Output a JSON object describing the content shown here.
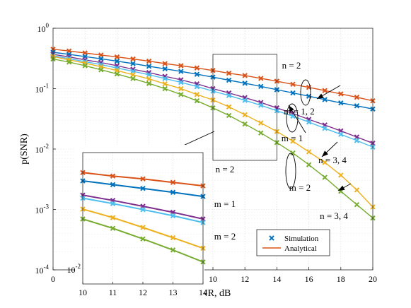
{
  "chart_data": {
    "type": "line",
    "xlabel": "SNR, dB",
    "ylabel": "p(SNR)",
    "xlim": [
      0,
      20
    ],
    "ylim": [
      0.0001,
      1
    ],
    "yscale": "log",
    "grid": true,
    "x_ticks": [
      "0",
      "2",
      "4",
      "6",
      "8",
      "10",
      "12",
      "14",
      "16",
      "18",
      "20"
    ],
    "y_ticks": [
      {
        "base": "10",
        "exp": "-4"
      },
      {
        "base": "10",
        "exp": "-3"
      },
      {
        "base": "10",
        "exp": "-2"
      },
      {
        "base": "10",
        "exp": "-1"
      },
      {
        "base": "10",
        "exp": "0"
      }
    ],
    "x": [
      0,
      1,
      2,
      3,
      4,
      5,
      6,
      7,
      8,
      9,
      10,
      11,
      12,
      13,
      14,
      15,
      16,
      17,
      18,
      19,
      20
    ],
    "series": [
      {
        "color": "#d95319",
        "values": [
          0.45,
          0.42,
          0.39,
          0.36,
          0.335,
          0.31,
          0.285,
          0.26,
          0.24,
          0.22,
          0.2,
          0.18,
          0.165,
          0.148,
          0.133,
          0.118,
          0.105,
          0.093,
          0.082,
          0.072,
          0.063
        ]
      },
      {
        "color": "#0072bd",
        "values": [
          0.4,
          0.37,
          0.34,
          0.312,
          0.285,
          0.26,
          0.235,
          0.213,
          0.193,
          0.173,
          0.155,
          0.138,
          0.123,
          0.109,
          0.096,
          0.085,
          0.075,
          0.066,
          0.058,
          0.052,
          0.046
        ]
      },
      {
        "color": "#7e2f8e",
        "values": [
          0.37,
          0.335,
          0.3,
          0.27,
          0.24,
          0.21,
          0.185,
          0.16,
          0.14,
          0.12,
          0.1,
          0.085,
          0.071,
          0.059,
          0.048,
          0.039,
          0.031,
          0.025,
          0.02,
          0.0158,
          0.0125
        ]
      },
      {
        "color": "#4dbeee",
        "values": [
          0.35,
          0.315,
          0.28,
          0.25,
          0.22,
          0.194,
          0.17,
          0.147,
          0.127,
          0.108,
          0.091,
          0.077,
          0.064,
          0.053,
          0.043,
          0.035,
          0.028,
          0.022,
          0.0175,
          0.0138,
          0.0108
        ]
      },
      {
        "color": "#edb120",
        "values": [
          0.34,
          0.3,
          0.265,
          0.23,
          0.2,
          0.17,
          0.145,
          0.12,
          0.1,
          0.08,
          0.065,
          0.05,
          0.037,
          0.027,
          0.0195,
          0.0135,
          0.009,
          0.006,
          0.0037,
          0.0021,
          0.0011
        ]
      },
      {
        "color": "#77ac30",
        "values": [
          0.31,
          0.275,
          0.24,
          0.205,
          0.175,
          0.147,
          0.122,
          0.1,
          0.08,
          0.063,
          0.048,
          0.036,
          0.026,
          0.0185,
          0.0128,
          0.0086,
          0.0055,
          0.0034,
          0.002,
          0.0012,
          0.00072
        ]
      }
    ],
    "legend": {
      "placement": "bottom-right",
      "entries": [
        {
          "label": "Simulation",
          "marker": "x",
          "color": "#0072bd"
        },
        {
          "label": "Analytical",
          "marker": "line",
          "color": "#d95319"
        }
      ]
    },
    "annotations": [
      {
        "text": "n = 2",
        "x": 16.6,
        "y": 0.2
      },
      {
        "text": "m = 1, 2",
        "x": 18.6,
        "y": 0.05
      },
      {
        "text": "m = 1",
        "x": 16.8,
        "y": 0.019
      },
      {
        "text": "n = 3, 4",
        "x": 19.3,
        "y": 0.0047
      },
      {
        "text": "m = 2",
        "x": 17.7,
        "y": 0.0016
      },
      {
        "text": "n = 3, 4",
        "x": 19.3,
        "y": 0.00048
      }
    ],
    "zoom_box": {
      "x": [
        10,
        14
      ],
      "y": [
        0.0065,
        0.37
      ]
    },
    "inset": {
      "xlim": [
        10,
        14
      ],
      "ylim_fraction_note": "",
      "x_ticks": [
        "10",
        "11",
        "12",
        "13",
        "14"
      ],
      "y_tick": {
        "base": "10",
        "exp": "-2"
      },
      "labels": [
        {
          "text": "n = 2"
        },
        {
          "text": "m = 1"
        },
        {
          "text": "m = 2"
        }
      ]
    }
  }
}
